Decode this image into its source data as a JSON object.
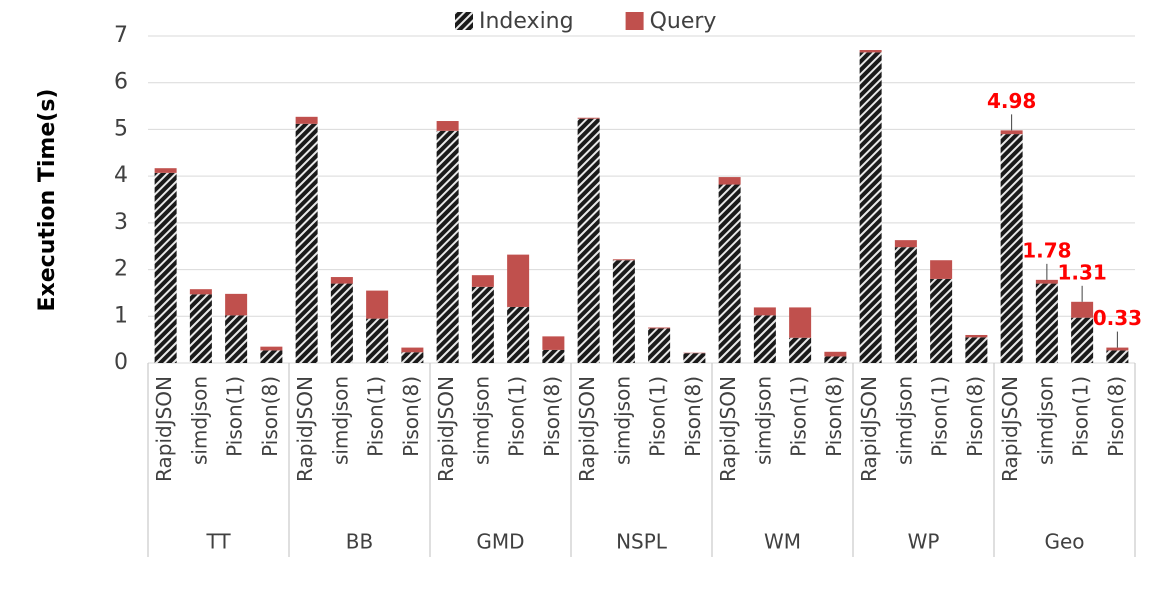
{
  "chart_data": {
    "type": "stacked-bar",
    "ylabel": "Execution Time(s)",
    "categories": [
      "RapidJSON",
      "simdjson",
      "Pison(1)",
      "Pison(8)",
      "RapidJSON",
      "simdjson",
      "Pison(1)",
      "Pison(8)",
      "RapidJSON",
      "simdjson",
      "Pison(1)",
      "Pison(8)",
      "RapidJSON",
      "simdjson",
      "Pison(1)",
      "Pison(8)",
      "RapidJSON",
      "simdjson",
      "Pison(1)",
      "Pison(8)",
      "RapidJSON",
      "simdjson",
      "Pison(1)",
      "Pison(8)",
      "RapidJSON",
      "simdjson",
      "Pison(1)",
      "Pison(8)"
    ],
    "groups": [
      "TT",
      "BB",
      "GMD",
      "NSPL",
      "WM",
      "WP",
      "Geo"
    ],
    "series": [
      {
        "name": "Indexing",
        "color": "#1a1a1a",
        "hatch": true,
        "values": [
          4.07,
          1.47,
          1.02,
          0.27,
          5.12,
          1.7,
          0.95,
          0.23,
          4.97,
          1.63,
          1.2,
          0.28,
          5.23,
          2.2,
          0.74,
          0.21,
          3.82,
          1.02,
          0.54,
          0.14,
          6.65,
          2.48,
          1.8,
          0.55,
          4.9,
          1.7,
          0.97,
          0.27
        ]
      },
      {
        "name": "Query",
        "color": "#c0504d",
        "hatch": false,
        "values": [
          0.1,
          0.11,
          0.46,
          0.08,
          0.15,
          0.14,
          0.6,
          0.1,
          0.21,
          0.25,
          1.12,
          0.29,
          0.02,
          0.02,
          0.02,
          0.01,
          0.16,
          0.17,
          0.65,
          0.1,
          0.05,
          0.15,
          0.4,
          0.05,
          0.08,
          0.08,
          0.34,
          0.06
        ]
      }
    ],
    "total_labels": [
      null,
      null,
      null,
      null,
      null,
      null,
      null,
      null,
      null,
      null,
      null,
      null,
      null,
      null,
      null,
      null,
      null,
      null,
      null,
      null,
      null,
      null,
      null,
      null,
      4.98,
      1.78,
      1.31,
      0.33
    ],
    "total_label_color": "#ff0000",
    "ylim": [
      0,
      7
    ],
    "yticks": [
      0,
      1,
      2,
      3,
      4,
      5,
      6,
      7
    ],
    "grid": true,
    "legend": "top"
  }
}
